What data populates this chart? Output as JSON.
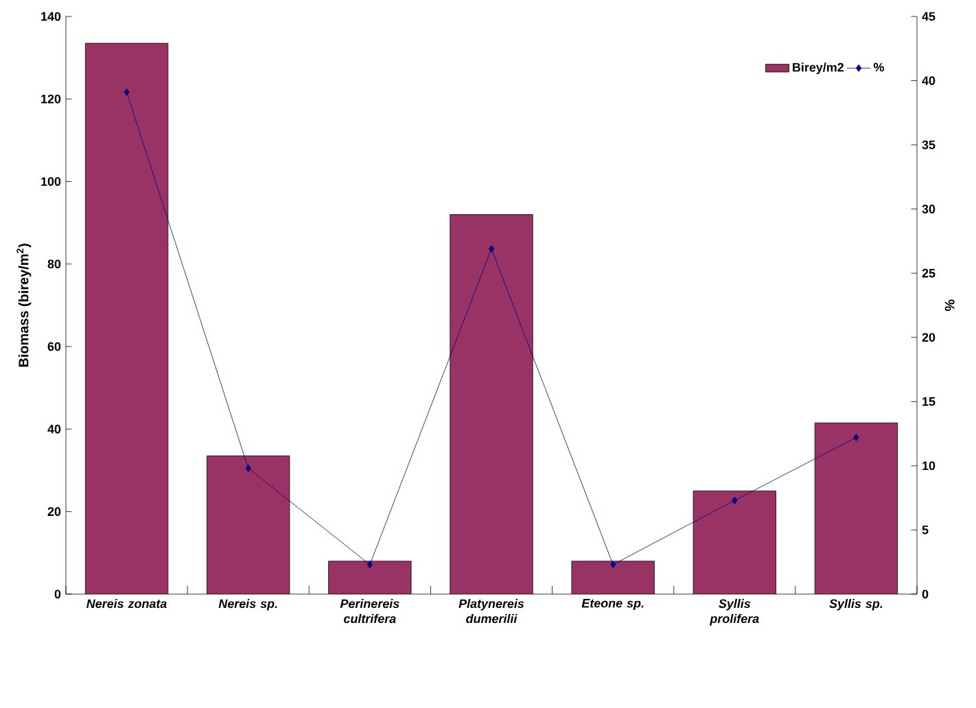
{
  "chart_data": {
    "type": "bar",
    "ylabel": "Biomass (birey/m$^{2}$)",
    "y2label": "%",
    "categories": [
      "Nereis zonata",
      "Nereis sp.",
      "Perinereis cultrifera",
      "Platynereis dumerilii",
      "Eteone sp.",
      "Syllis prolifera",
      "Syllis sp."
    ],
    "series": [
      {
        "name": "Birey/m2",
        "color": "#993366",
        "values": [
          133.5,
          33.5,
          8,
          92,
          8,
          25,
          41.5
        ]
      },
      {
        "name": "%",
        "type": "line",
        "axis": "y2",
        "color": "#000080",
        "values": [
          39.1,
          9.8,
          2.3,
          26.9,
          2.3,
          7.3,
          12.2
        ]
      }
    ],
    "ylim": [
      0,
      140
    ],
    "yticks": [
      0,
      20,
      40,
      60,
      80,
      100,
      120,
      140
    ],
    "y2lim": [
      0,
      45
    ],
    "y2ticks": [
      0,
      5,
      10,
      15,
      20,
      25,
      30,
      35,
      40,
      45
    ],
    "marker": "diamond",
    "legend": "top right",
    "grid": false
  }
}
